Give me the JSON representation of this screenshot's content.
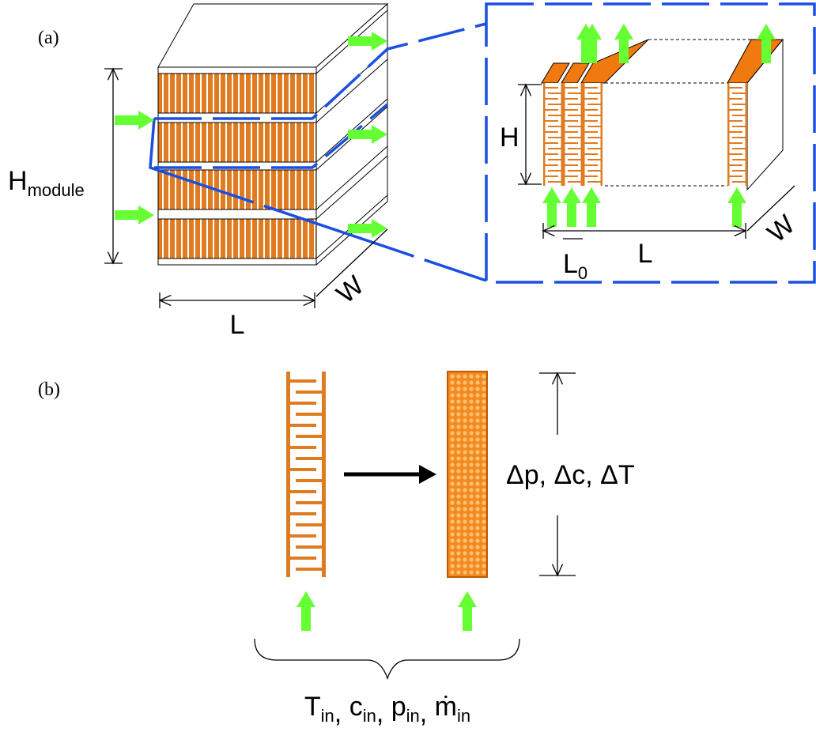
{
  "panel_a": {
    "label": "(a)",
    "module_height": {
      "symbol": "H",
      "sub": "module"
    },
    "module_length": "L",
    "module_width": "W",
    "channel_height": "H",
    "channel_pitch": {
      "symbol": "L",
      "sub": "0"
    },
    "channel_length": "L",
    "channel_width": "W"
  },
  "panel_b": {
    "label": "(b)",
    "outputs": "Δp, Δc, ΔT",
    "inputs": {
      "items": [
        {
          "symbol": "T",
          "sub": "in"
        },
        {
          "symbol": "c",
          "sub": "in"
        },
        {
          "symbol": "p",
          "sub": "in"
        },
        {
          "symbol": "ṁ",
          "sub": "in"
        }
      ],
      "separator": ", "
    }
  }
}
